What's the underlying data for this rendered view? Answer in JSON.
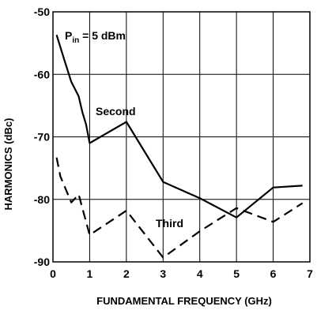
{
  "chart_data": {
    "type": "line",
    "title": "",
    "xlabel": "FUNDAMENTAL FREQUENCY (GHz)",
    "ylabel": "HARMONICS (dBc)",
    "xlim": [
      0,
      7
    ],
    "ylim": [
      -90,
      -50
    ],
    "xticks": [
      0,
      1,
      2,
      3,
      4,
      5,
      6,
      7
    ],
    "yticks": [
      -90,
      -80,
      -70,
      -60,
      -50
    ],
    "grid": true,
    "annotations": {
      "pin_main": "P",
      "pin_sub": "in",
      "pin_rest": " = 5 dBm"
    },
    "series": [
      {
        "name": "Second",
        "style": "solid",
        "color": "#000000",
        "x": [
          0.1,
          0.3,
          0.5,
          0.7,
          0.8,
          0.9,
          1.0,
          2.0,
          3.0,
          4.0,
          5.0,
          6.0,
          6.8
        ],
        "y": [
          -53.7,
          -57.5,
          -61.2,
          -63.5,
          -66,
          -68,
          -71,
          -67.6,
          -77.2,
          -79.8,
          -82.9,
          -78.1,
          -77.8
        ]
      },
      {
        "name": "Third",
        "style": "dashed",
        "color": "#000000",
        "x": [
          0.1,
          0.2,
          0.5,
          0.7,
          1.0,
          2.0,
          3.0,
          4.0,
          5.0,
          6.0,
          6.8
        ],
        "y": [
          -73.3,
          -76.3,
          -80.5,
          -79.2,
          -85.7,
          -81.8,
          -89.3,
          -85.1,
          -81.4,
          -83.6,
          -80.6
        ]
      }
    ]
  }
}
